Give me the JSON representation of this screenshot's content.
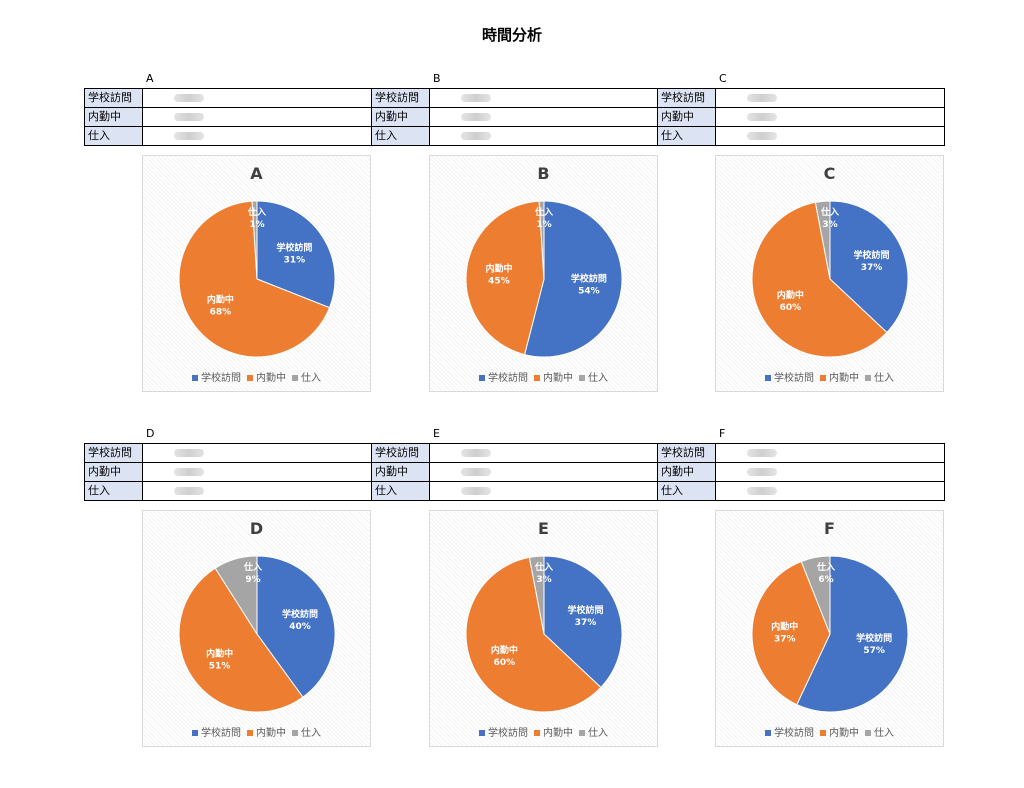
{
  "page_title": "時間分析",
  "colors": {
    "学校訪問": "#4472c4",
    "内勤中": "#ed7d31",
    "仕入": "#a5a5a5",
    "label_bg": "#dce3f3"
  },
  "groups": [
    {
      "letter": "A",
      "rows": [
        "学校訪問",
        "内勤中",
        "仕入"
      ]
    },
    {
      "letter": "B",
      "rows": [
        "学校訪問",
        "内勤中",
        "仕入"
      ]
    },
    {
      "letter": "C",
      "rows": [
        "学校訪問",
        "内勤中",
        "仕入"
      ]
    },
    {
      "letter": "D",
      "rows": [
        "学校訪問",
        "内勤中",
        "仕入"
      ]
    },
    {
      "letter": "E",
      "rows": [
        "学校訪問",
        "内勤中",
        "仕入"
      ]
    },
    {
      "letter": "F",
      "rows": [
        "学校訪問",
        "内勤中",
        "仕入"
      ]
    }
  ],
  "chart_data": [
    {
      "type": "pie",
      "title": "A",
      "categories": [
        "学校訪問",
        "内勤中",
        "仕入"
      ],
      "values": [
        31,
        68,
        1
      ],
      "labels": [
        "31%",
        "68%",
        "1%"
      ],
      "legend": "bottom"
    },
    {
      "type": "pie",
      "title": "B",
      "categories": [
        "学校訪問",
        "内勤中",
        "仕入"
      ],
      "values": [
        54,
        45,
        1
      ],
      "labels": [
        "54%",
        "45%",
        "1%"
      ],
      "legend": "bottom"
    },
    {
      "type": "pie",
      "title": "C",
      "categories": [
        "学校訪問",
        "内勤中",
        "仕入"
      ],
      "values": [
        37,
        60,
        3
      ],
      "labels": [
        "37%",
        "60%",
        "3%"
      ],
      "legend": "bottom"
    },
    {
      "type": "pie",
      "title": "D",
      "categories": [
        "学校訪問",
        "内勤中",
        "仕入"
      ],
      "values": [
        40,
        51,
        9
      ],
      "labels": [
        "40%",
        "51%",
        "9%"
      ],
      "legend": "bottom"
    },
    {
      "type": "pie",
      "title": "E",
      "categories": [
        "学校訪問",
        "内勤中",
        "仕入"
      ],
      "values": [
        37,
        60,
        3
      ],
      "labels": [
        "37%",
        "60%",
        "3%"
      ],
      "legend": "bottom"
    },
    {
      "type": "pie",
      "title": "F",
      "categories": [
        "学校訪問",
        "内勤中",
        "仕入"
      ],
      "values": [
        57,
        37,
        6
      ],
      "labels": [
        "57%",
        "37%",
        "6%"
      ],
      "legend": "bottom"
    }
  ]
}
